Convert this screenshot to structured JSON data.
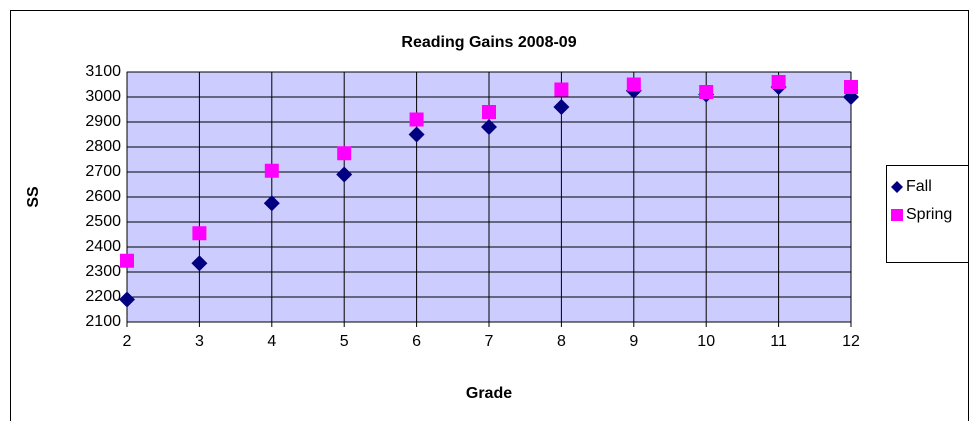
{
  "chart_data": {
    "type": "scatter",
    "title": "Reading Gains 2008-09",
    "x_label": "Grade",
    "y_label": "SS",
    "x": [
      2,
      3,
      4,
      5,
      6,
      7,
      8,
      9,
      10,
      11,
      12
    ],
    "series": [
      {
        "name": "Fall",
        "color": "#000080",
        "marker": "diamond",
        "values": [
          2190,
          2335,
          2575,
          2690,
          2850,
          2880,
          2960,
          3025,
          3010,
          3040,
          3000
        ]
      },
      {
        "name": "Spring",
        "color": "#ff00ff",
        "marker": "square",
        "values": [
          2345,
          2455,
          2705,
          2775,
          2910,
          2940,
          3030,
          3050,
          3020,
          3060,
          3040
        ]
      }
    ],
    "xlim": [
      2,
      12
    ],
    "xticks": [
      2,
      3,
      4,
      5,
      6,
      7,
      8,
      9,
      10,
      11,
      12
    ],
    "ylim": [
      2100,
      3100
    ],
    "yticks": [
      2100,
      2200,
      2300,
      2400,
      2500,
      2600,
      2700,
      2800,
      2900,
      3000,
      3100
    ],
    "grid": true,
    "legend": "right",
    "plot_background": "#ccccff"
  }
}
